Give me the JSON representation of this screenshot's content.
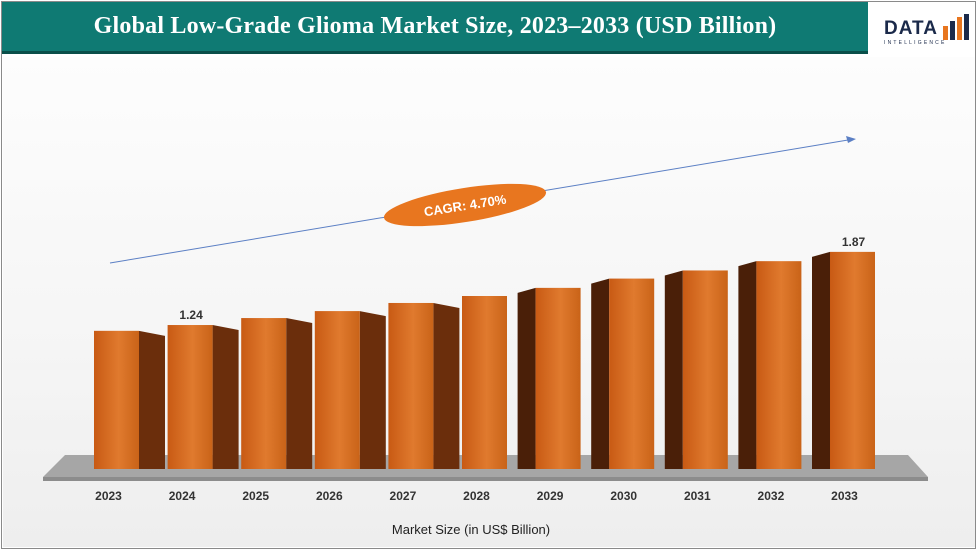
{
  "header": {
    "title": "Global Low-Grade Glioma Market Size, 2023–2033 (USD Billion)",
    "logo_text": "DATA",
    "logo_subtext": "INTELLIGENCE"
  },
  "colors": {
    "title_bar": "#0f7a73",
    "bar_front": "#d2691e",
    "bar_side": "#6b2e0c",
    "floor": "#a6a6a6",
    "cagr_fill": "#e8761f",
    "trend_arrow": "#5b7fc4"
  },
  "chart_data": {
    "type": "bar",
    "categories": [
      "2023",
      "2024",
      "2025",
      "2026",
      "2027",
      "2028",
      "2029",
      "2030",
      "2031",
      "2032",
      "2033"
    ],
    "values": [
      1.19,
      1.24,
      1.3,
      1.36,
      1.43,
      1.49,
      1.56,
      1.64,
      1.71,
      1.79,
      1.87
    ],
    "data_labels": [
      {
        "category": "2024",
        "text": "1.24"
      },
      {
        "category": "2033",
        "text": "1.87"
      }
    ],
    "xlabel": "Market Size (in US$ Billion)",
    "ylabel": "",
    "ylim": [
      0,
      2.2
    ],
    "grid": false,
    "style": "3d-bars",
    "annotations": [
      {
        "type": "ellipse-label",
        "text": "CAGR: 4.70%"
      },
      {
        "type": "trend-arrow"
      }
    ]
  }
}
